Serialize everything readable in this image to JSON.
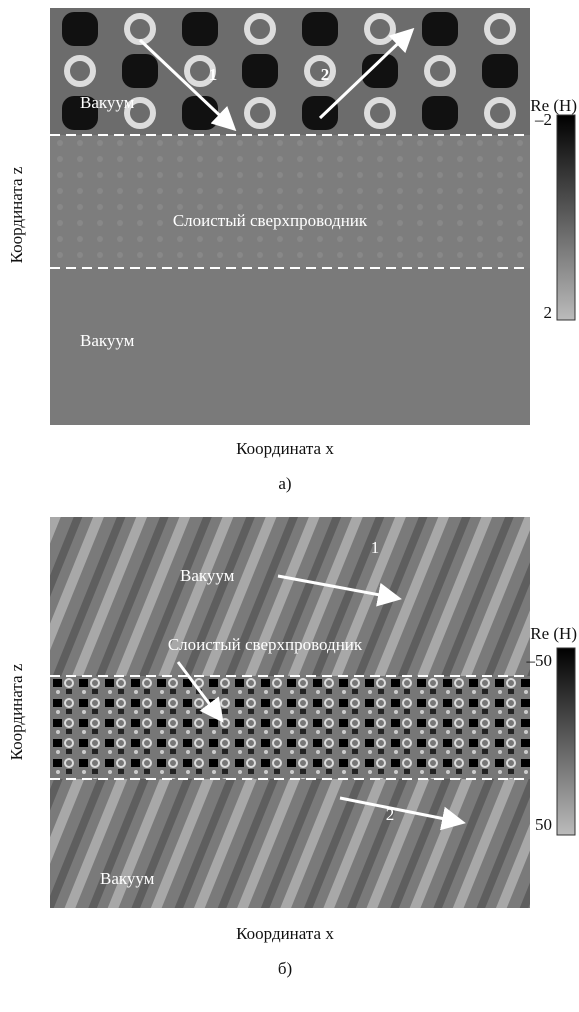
{
  "panels": [
    {
      "regions": [
        "Вакуум",
        "Слоистый сверхпроводник",
        "Вакуум"
      ],
      "arrows": [
        "1",
        "2"
      ],
      "colorbar": {
        "label": "Re (H)",
        "ticks": [
          "–2",
          "2"
        ]
      },
      "x_label": "Координата x",
      "y_label": "Координата z",
      "caption": "а)"
    },
    {
      "regions": [
        "Вакуум",
        "Слоистый сверхпроводник",
        "Вакуум"
      ],
      "arrows": [
        "1",
        "2"
      ],
      "colorbar": {
        "label": "Re (H)",
        "ticks": [
          "–50",
          "50"
        ]
      },
      "x_label": "Координата x",
      "y_label": "Координата z",
      "caption": "б)"
    }
  ]
}
